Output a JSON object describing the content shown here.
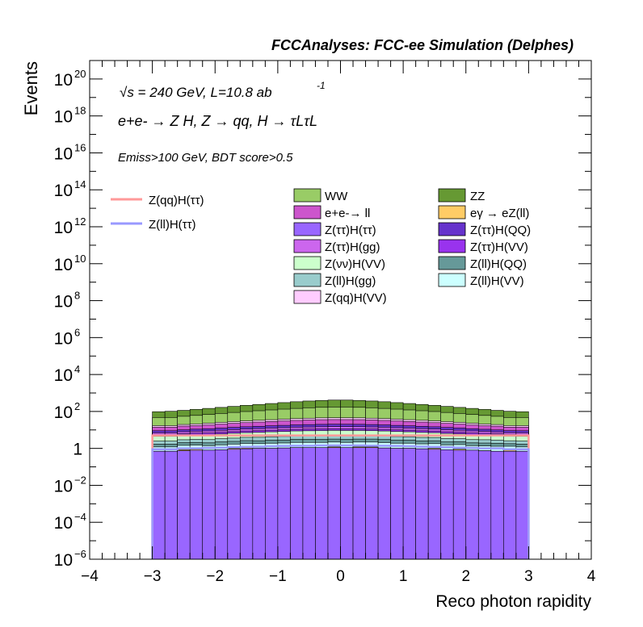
{
  "header": {
    "title": "FCCAnalyses: FCC-ee Simulation (Delphes)"
  },
  "annotations": {
    "sqrts_text": "√s = 240 GeV, L=10.8 ab",
    "lumi_exp": "-1",
    "process_text": "e+e- → Z H, Z → qq, H → τLτL",
    "cuts_text": "Emiss>100 GeV, BDT score>0.5"
  },
  "chart_data": {
    "type": "area",
    "xlabel": "Reco photon rapidity",
    "ylabel": "Events",
    "xlim": [
      -4,
      4
    ],
    "ylim": [
      1e-06,
      1e+21
    ],
    "yscale": "log",
    "x_ticks": [
      "−4",
      "−3",
      "−2",
      "−1",
      "0",
      "1",
      "2",
      "3",
      "4"
    ],
    "y_ticks": [
      {
        "base": "10",
        "exp": "−6"
      },
      {
        "base": "10",
        "exp": "−4"
      },
      {
        "base": "10",
        "exp": "−2"
      },
      {
        "base": "1",
        "exp": ""
      },
      {
        "base": "10",
        "exp": "2"
      },
      {
        "base": "10",
        "exp": "4"
      },
      {
        "base": "10",
        "exp": "6"
      },
      {
        "base": "10",
        "exp": "8"
      },
      {
        "base": "10",
        "exp": "10"
      },
      {
        "base": "10",
        "exp": "12"
      },
      {
        "base": "10",
        "exp": "14"
      },
      {
        "base": "10",
        "exp": "16"
      },
      {
        "base": "10",
        "exp": "18"
      },
      {
        "base": "10",
        "exp": "20"
      }
    ],
    "bins": [
      -3.0,
      -2.8,
      -2.6,
      -2.4,
      -2.2,
      -2.0,
      -1.8,
      -1.6,
      -1.4,
      -1.2,
      -1.0,
      -0.8,
      -0.6,
      -0.4,
      -0.2,
      0.0,
      0.2,
      0.4,
      0.6,
      0.8,
      1.0,
      1.2,
      1.4,
      1.6,
      1.8,
      2.0,
      2.2,
      2.4,
      2.6,
      2.8,
      3.0
    ],
    "legend_signal": [
      {
        "name": "Z(qq)H(ττ)",
        "color": "#ff9999"
      },
      {
        "name": "Z(ll)H(ττ)",
        "color": "#9999ff"
      }
    ],
    "legend_bkg_left": [
      {
        "name": "WW",
        "color": "#99cc66"
      },
      {
        "name": "e+e-→ ll",
        "color": "#cc55cc"
      },
      {
        "name": "Z(ττ)H(ττ)",
        "color": "#9966ff"
      },
      {
        "name": "Z(ττ)H(gg)",
        "color": "#cc66ee"
      },
      {
        "name": "Z(νν)H(VV)",
        "color": "#ccffcc"
      },
      {
        "name": "Z(ll)H(gg)",
        "color": "#99cccc"
      },
      {
        "name": "Z(qq)H(VV)",
        "color": "#ffccff"
      }
    ],
    "legend_bkg_right": [
      {
        "name": "ZZ",
        "color": "#669933"
      },
      {
        "name": "eγ → eZ(ll)",
        "color": "#ffcc66"
      },
      {
        "name": "Z(ττ)H(QQ)",
        "color": "#6633cc"
      },
      {
        "name": "Z(ττ)H(VV)",
        "color": "#9933ee"
      },
      {
        "name": "Z(ll)H(QQ)",
        "color": "#669999"
      },
      {
        "name": "Z(ll)H(VV)",
        "color": "#ccffff"
      }
    ],
    "stack": [
      {
        "name": "Z(ττ)H(ττ)",
        "color": "#9966ff",
        "values": [
          0.7,
          0.7,
          0.75,
          0.8,
          0.8,
          0.85,
          0.9,
          0.95,
          1.0,
          1.0,
          1.05,
          1.1,
          1.1,
          1.1,
          1.1,
          1.1,
          1.1,
          1.1,
          1.05,
          1.0,
          1.0,
          0.95,
          0.9,
          0.85,
          0.8,
          0.8,
          0.75,
          0.7,
          0.7,
          0.7
        ]
      },
      {
        "name": "eγ → eZ(ll)",
        "color": "#ffcc66",
        "values": [
          0,
          0,
          0.1,
          0.1,
          0,
          0,
          0.1,
          0.1,
          0,
          0,
          0,
          0,
          0,
          0,
          0.1,
          0,
          0.1,
          0.1,
          0,
          0,
          0,
          0,
          0.1,
          0,
          0.1,
          0,
          0,
          0,
          0.1,
          0
        ]
      },
      {
        "name": "Z(ll)H(VV)",
        "color": "#ccffff",
        "values": [
          0.5,
          0.5,
          0.6,
          0.6,
          0.6,
          0.7,
          0.7,
          0.8,
          0.8,
          0.9,
          0.9,
          1.0,
          1.0,
          1.0,
          1.0,
          1.0,
          1.0,
          1.0,
          1.0,
          0.9,
          0.9,
          0.8,
          0.8,
          0.7,
          0.7,
          0.6,
          0.6,
          0.6,
          0.5,
          0.5
        ]
      },
      {
        "name": "Z(ll)H(QQ)",
        "color": "#669999",
        "values": [
          0.5,
          0.5,
          0.6,
          0.6,
          0.6,
          0.7,
          0.7,
          0.8,
          0.8,
          0.9,
          0.9,
          1.0,
          1.0,
          1.0,
          1.0,
          1.0,
          1.0,
          1.0,
          1.0,
          0.9,
          0.9,
          0.8,
          0.8,
          0.7,
          0.7,
          0.6,
          0.6,
          0.6,
          0.5,
          0.5
        ]
      },
      {
        "name": "Z(ll)H(gg)",
        "color": "#99cccc",
        "values": [
          0.8,
          0.8,
          0.9,
          1.0,
          1.0,
          1.1,
          1.2,
          1.3,
          1.4,
          1.5,
          1.6,
          1.7,
          1.7,
          1.8,
          1.8,
          1.8,
          1.8,
          1.7,
          1.7,
          1.6,
          1.5,
          1.4,
          1.3,
          1.2,
          1.1,
          1.0,
          1.0,
          0.9,
          0.8,
          0.8
        ]
      },
      {
        "name": "Z(νν)H(VV)",
        "color": "#ccffcc",
        "values": [
          2.0,
          2.0,
          2.2,
          2.4,
          2.5,
          2.7,
          3.0,
          3.2,
          3.4,
          3.6,
          3.8,
          4.0,
          4.2,
          4.3,
          4.4,
          4.4,
          4.3,
          4.2,
          4.0,
          3.8,
          3.6,
          3.4,
          3.2,
          3.0,
          2.7,
          2.5,
          2.4,
          2.2,
          2.0,
          2.0
        ]
      },
      {
        "name": "Z(ττ)H(VV)",
        "color": "#9933ee",
        "values": [
          1.0,
          1.0,
          1.1,
          1.2,
          1.3,
          1.4,
          1.5,
          1.6,
          1.7,
          1.8,
          1.9,
          2.0,
          2.1,
          2.2,
          2.2,
          2.2,
          2.2,
          2.1,
          2.0,
          1.9,
          1.8,
          1.7,
          1.6,
          1.5,
          1.4,
          1.3,
          1.2,
          1.1,
          1.0,
          1.0
        ]
      },
      {
        "name": "Z(ττ)H(gg)",
        "color": "#cc66ee",
        "values": [
          1.5,
          1.5,
          1.7,
          1.8,
          2.0,
          2.1,
          2.3,
          2.5,
          2.7,
          2.9,
          3.0,
          3.2,
          3.3,
          3.4,
          3.5,
          3.5,
          3.4,
          3.3,
          3.2,
          3.0,
          2.9,
          2.7,
          2.5,
          2.3,
          2.1,
          2.0,
          1.8,
          1.7,
          1.5,
          1.5
        ]
      },
      {
        "name": "Z(ττ)H(QQ)",
        "color": "#6633cc",
        "values": [
          2.0,
          2.0,
          2.2,
          2.5,
          2.7,
          3.0,
          3.3,
          3.6,
          3.9,
          4.2,
          4.5,
          4.8,
          5.0,
          5.2,
          5.3,
          5.3,
          5.2,
          5.0,
          4.8,
          4.5,
          4.2,
          3.9,
          3.6,
          3.3,
          3.0,
          2.7,
          2.5,
          2.2,
          2.0,
          2.0
        ]
      },
      {
        "name": "e+e-→ ll",
        "color": "#cc55cc",
        "values": [
          5,
          5,
          6,
          6,
          7,
          8,
          9,
          10,
          11,
          12,
          13,
          14,
          15,
          16,
          16,
          16,
          16,
          15,
          14,
          13,
          12,
          11,
          10,
          9,
          8,
          7,
          6,
          6,
          5,
          5
        ]
      },
      {
        "name": "Z(qq)H(VV)",
        "color": "#ffccff",
        "values": [
          3,
          3,
          3.5,
          4,
          4.5,
          5,
          5.5,
          6,
          6.5,
          7,
          7.5,
          8,
          8.5,
          9,
          9,
          9,
          9,
          8.5,
          8,
          7.5,
          7,
          6.5,
          6,
          5.5,
          5,
          4.5,
          4,
          3.5,
          3,
          3
        ]
      },
      {
        "name": "WW",
        "color": "#99cc66",
        "values": [
          30,
          30,
          35,
          40,
          45,
          52,
          60,
          68,
          76,
          85,
          95,
          105,
          115,
          122,
          128,
          128,
          122,
          115,
          105,
          95,
          85,
          76,
          68,
          60,
          52,
          45,
          40,
          35,
          30,
          30
        ]
      },
      {
        "name": "ZZ",
        "color": "#669933",
        "values": [
          50,
          55,
          60,
          68,
          78,
          88,
          100,
          115,
          130,
          148,
          168,
          190,
          210,
          228,
          240,
          240,
          228,
          210,
          190,
          168,
          148,
          130,
          115,
          100,
          88,
          78,
          68,
          60,
          55,
          50
        ]
      }
    ],
    "signal_lines": [
      {
        "name": "Z(qq)H(ττ)",
        "color": "#ff9999",
        "values": [
          5,
          5,
          5,
          5,
          5,
          5,
          5,
          5,
          5,
          5,
          5,
          5,
          5,
          5,
          5,
          5,
          5,
          5,
          5,
          5,
          5,
          5,
          5,
          5,
          5,
          5,
          5,
          5,
          5,
          5
        ]
      },
      {
        "name": "Z(ll)H(ττ)",
        "color": "#9999ff",
        "values": [
          0.9,
          0.9,
          1.0,
          1.0,
          1.05,
          1.1,
          1.15,
          1.2,
          1.25,
          1.3,
          1.35,
          1.4,
          1.4,
          1.45,
          1.45,
          1.45,
          1.45,
          1.4,
          1.4,
          1.35,
          1.3,
          1.25,
          1.2,
          1.15,
          1.1,
          1.05,
          1.0,
          1.0,
          0.9,
          0.9
        ]
      }
    ]
  }
}
